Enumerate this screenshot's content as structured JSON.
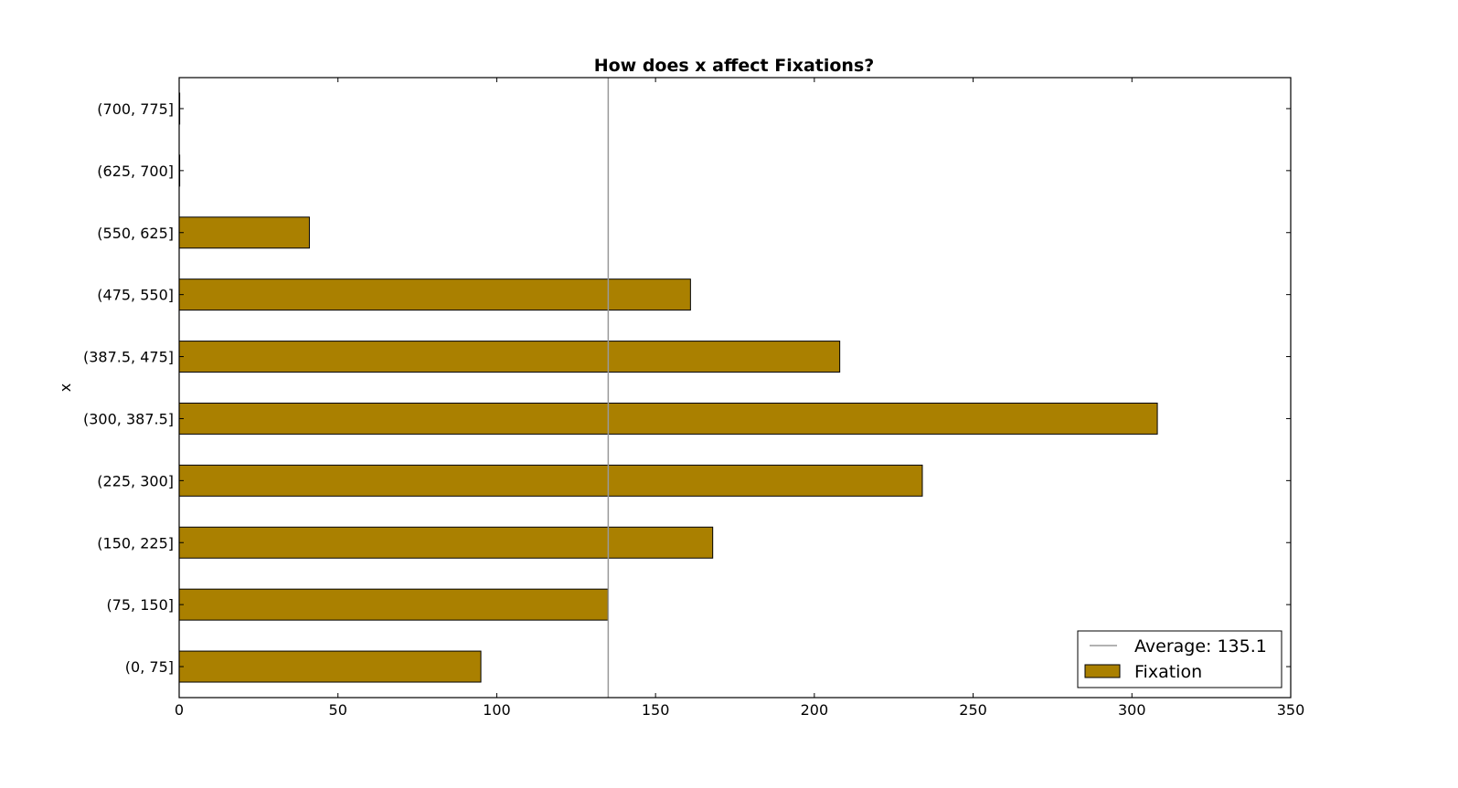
{
  "chart_data": {
    "type": "bar",
    "orientation": "horizontal",
    "title": "How does x affect Fixations?",
    "xlabel": "",
    "ylabel": "x",
    "categories": [
      "(0, 75]",
      "(75, 150]",
      "(150, 225]",
      "(225, 300]",
      "(300, 387.5]",
      "(387.5, 475]",
      "(475, 550]",
      "(550, 625]",
      "(625, 700]",
      "(700, 775]"
    ],
    "series": [
      {
        "name": "Fixation",
        "values": [
          95,
          135,
          168,
          234,
          308,
          208,
          161,
          41,
          0,
          0
        ],
        "color": "#aa8000"
      }
    ],
    "reference_line": {
      "label": "Average: 135.1",
      "value": 135.1,
      "color": "#999999"
    },
    "xlim": [
      0,
      350
    ],
    "xticks": [
      "0",
      "50",
      "100",
      "150",
      "200",
      "250",
      "300",
      "350"
    ],
    "grid": false,
    "legend_position": "lower-right"
  }
}
